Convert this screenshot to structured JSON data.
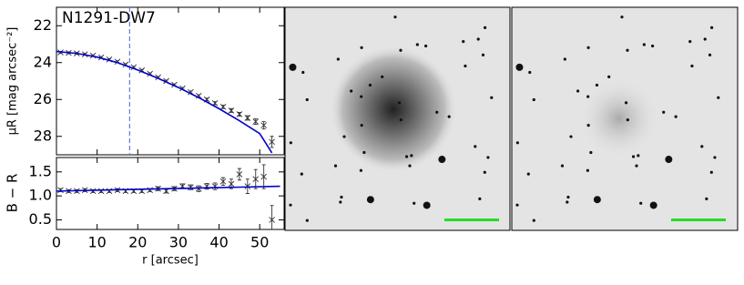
{
  "chart_data": [
    {
      "type": "scatter",
      "title": "N1291-DW7",
      "ylabel": "μR [mag arcsec⁻²]",
      "xlim": [
        0,
        56
      ],
      "ylim": [
        21,
        29
      ],
      "invert_y": true,
      "yticks": [
        22,
        24,
        26,
        28
      ],
      "color": "#333333",
      "x": [
        1,
        3,
        5,
        7,
        9,
        11,
        13,
        15,
        17,
        19,
        21,
        23,
        25,
        27,
        29,
        31,
        33,
        35,
        37,
        39,
        41,
        43,
        45,
        47,
        49,
        51,
        53
      ],
      "values": [
        23.45,
        23.47,
        23.5,
        23.55,
        23.62,
        23.72,
        23.83,
        23.95,
        24.1,
        24.25,
        24.42,
        24.6,
        24.8,
        25.0,
        25.2,
        25.4,
        25.6,
        25.8,
        26.0,
        26.2,
        26.4,
        26.6,
        26.8,
        27.0,
        27.2,
        27.4,
        28.3
      ],
      "errors": [
        0.05,
        0.05,
        0.05,
        0.05,
        0.05,
        0.05,
        0.05,
        0.05,
        0.05,
        0.05,
        0.05,
        0.05,
        0.05,
        0.05,
        0.05,
        0.05,
        0.06,
        0.06,
        0.07,
        0.08,
        0.09,
        0.1,
        0.1,
        0.12,
        0.15,
        0.2,
        0.3
      ],
      "model": {
        "color": "#0000cc",
        "x": [
          0,
          5,
          10,
          15,
          20,
          25,
          30,
          35,
          40,
          45,
          50,
          53
        ],
        "values": [
          23.4,
          23.5,
          23.7,
          24.0,
          24.4,
          24.85,
          25.35,
          25.9,
          26.5,
          27.15,
          27.85,
          28.9
        ]
      },
      "vline": {
        "x": 18,
        "color": "#6677dd",
        "style": "dashed"
      }
    },
    {
      "type": "scatter",
      "xlabel": "r [arcsec]",
      "ylabel": "B − R",
      "xlim": [
        0,
        56
      ],
      "ylim": [
        0.3,
        1.8
      ],
      "xticks": [
        0,
        10,
        20,
        30,
        40,
        50
      ],
      "yticks": [
        0.5,
        {
          "value": 1,
          "label": "1.0"
        },
        1.5
      ],
      "color": "#333333",
      "x": [
        1,
        3,
        5,
        7,
        9,
        11,
        13,
        15,
        17,
        19,
        21,
        23,
        25,
        27,
        29,
        31,
        33,
        35,
        37,
        39,
        41,
        43,
        45,
        47,
        49,
        51,
        53
      ],
      "values": [
        1.12,
        1.1,
        1.1,
        1.12,
        1.1,
        1.1,
        1.1,
        1.12,
        1.1,
        1.1,
        1.1,
        1.12,
        1.15,
        1.1,
        1.15,
        1.2,
        1.18,
        1.15,
        1.2,
        1.2,
        1.3,
        1.25,
        1.45,
        1.2,
        1.35,
        1.4,
        0.5
      ],
      "errors": [
        0.03,
        0.03,
        0.03,
        0.03,
        0.03,
        0.03,
        0.03,
        0.03,
        0.03,
        0.03,
        0.03,
        0.03,
        0.04,
        0.04,
        0.04,
        0.05,
        0.05,
        0.06,
        0.06,
        0.07,
        0.08,
        0.1,
        0.12,
        0.15,
        0.2,
        0.25,
        0.3
      ],
      "model": {
        "color": "#0000cc",
        "x": [
          0,
          55
        ],
        "values": [
          1.1,
          1.2
        ]
      }
    }
  ]
}
